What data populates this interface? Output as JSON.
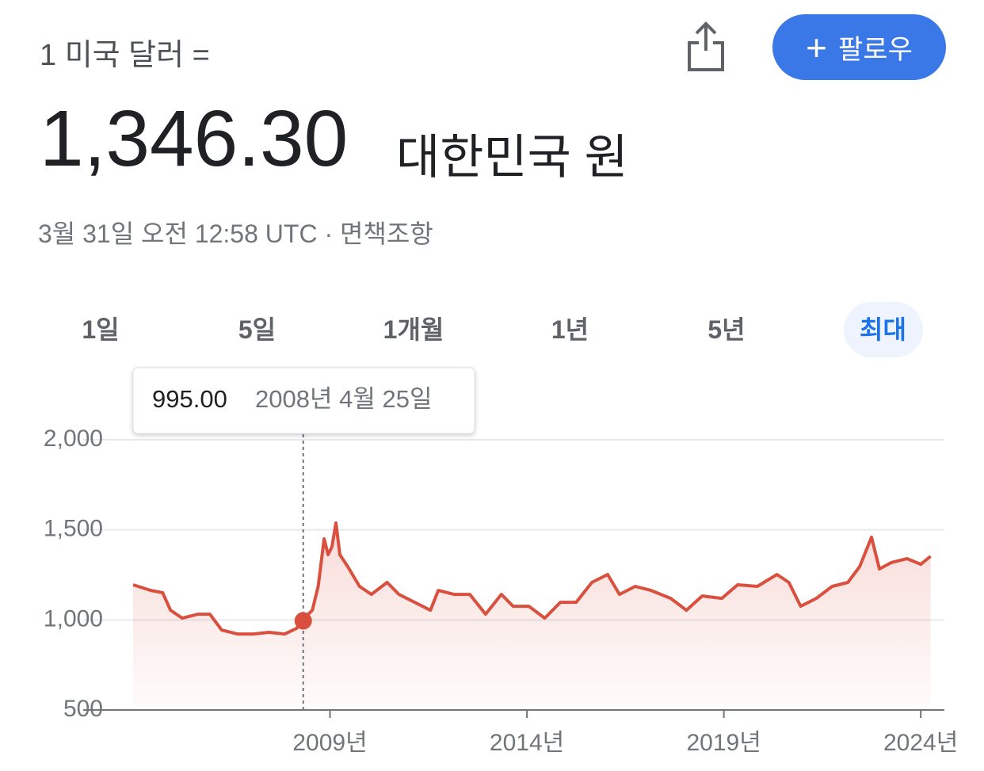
{
  "header": {
    "from": "1 미국 달러 =",
    "rate": "1,346.30",
    "to": "대한민국 원",
    "timestamp": "3월 31일 오전 12:58 UTC · 면책조항",
    "follow": "팔로우"
  },
  "tabs": [
    "1일",
    "5일",
    "1개월",
    "1년",
    "5년",
    "최대"
  ],
  "selected_tab": 5,
  "chart_data": {
    "type": "line",
    "color": "#d9503f",
    "x": [
      2004.0,
      2004.45,
      2004.75,
      2004.95,
      2005.25,
      2005.65,
      2005.95,
      2006.25,
      2006.65,
      2007.05,
      2007.45,
      2007.85,
      2008.15,
      2008.35,
      2008.55,
      2008.7,
      2008.85,
      2008.95,
      2009.05,
      2009.15,
      2009.25,
      2009.45,
      2009.75,
      2010.05,
      2010.45,
      2010.75,
      2011.15,
      2011.55,
      2011.75,
      2012.15,
      2012.55,
      2012.95,
      2013.35,
      2013.65,
      2014.05,
      2014.45,
      2014.85,
      2015.25,
      2015.65,
      2016.05,
      2016.35,
      2016.75,
      2017.15,
      2017.65,
      2018.05,
      2018.45,
      2018.95,
      2019.35,
      2019.85,
      2020.35,
      2020.65,
      2020.95,
      2021.35,
      2021.75,
      2022.15,
      2022.45,
      2022.75,
      2022.95,
      2023.25,
      2023.65,
      2024.0,
      2024.25
    ],
    "values": [
      1195,
      1164,
      1151,
      1054,
      1010,
      1032,
      1032,
      944,
      922,
      922,
      931,
      922,
      953,
      1010,
      1054,
      1186,
      1450,
      1362,
      1406,
      1538,
      1362,
      1296,
      1186,
      1142,
      1208,
      1142,
      1098,
      1054,
      1164,
      1142,
      1142,
      1032,
      1142,
      1076,
      1076,
      1010,
      1098,
      1098,
      1208,
      1252,
      1142,
      1186,
      1164,
      1120,
      1054,
      1133,
      1120,
      1195,
      1186,
      1252,
      1208,
      1076,
      1120,
      1186,
      1208,
      1296,
      1459,
      1283,
      1318,
      1340,
      1309,
      1353
    ],
    "xlim": [
      2004,
      2024.6
    ],
    "xticks": [
      {
        "value": 2009,
        "label": "2009년"
      },
      {
        "value": 2014,
        "label": "2014년"
      },
      {
        "value": 2019,
        "label": "2019년"
      },
      {
        "value": 2024,
        "label": "2024년"
      }
    ],
    "ylim": [
      500,
      2000
    ],
    "yticks": [
      500,
      {
        "value": 1000,
        "label": "1,000"
      },
      {
        "value": 1500,
        "label": "1,500"
      },
      {
        "value": 2000,
        "label": "2,000"
      }
    ],
    "grid": true,
    "tooltip": {
      "x": 2008.32,
      "value": 995,
      "value_label": "995.00",
      "label": "2008년 4월 25일"
    }
  }
}
